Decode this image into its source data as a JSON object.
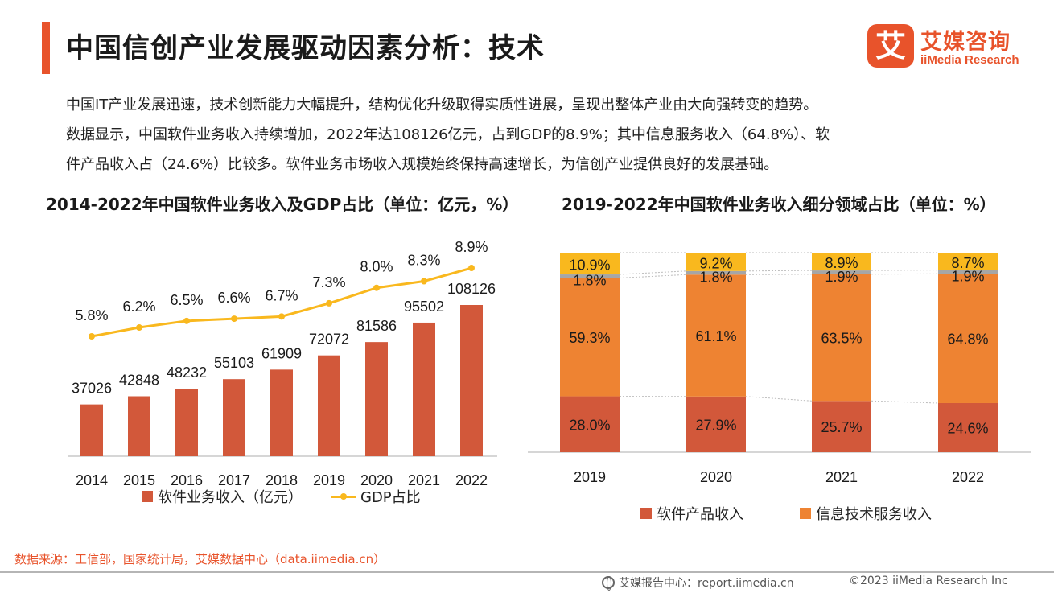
{
  "header": {
    "title": "中国信创产业发展驱动因素分析：技术",
    "logo_mark": "艾",
    "logo_cn": "艾媒咨询",
    "logo_en": "iiMedia Research"
  },
  "summary": [
    "中国IT产业发展迅速，技术创新能力大幅提升，结构优化升级取得实质性进展，呈现出整体产业由大向强转变的趋势。",
    "数据显示，中国软件业务收入持续增加，2022年达108126亿元，占到GDP的8.9%；其中信息服务收入（64.8%）、软",
    "件产品收入占（24.6%）比较多。软件业务市场收入规模始终保持高速增长，为信创产业提供良好的发展基础。"
  ],
  "colors": {
    "accent": "#e8532b",
    "bar_dark": "#d2583a",
    "bar_orange": "#ee8332",
    "bar_gray": "#a6a6a6",
    "bar_yellow": "#f9b81e",
    "line": "#f9b81e"
  },
  "chart_data": [
    {
      "type": "bar",
      "title": "2014-2022年中国软件业务收入及GDP占比（单位：亿元，%）",
      "categories": [
        "2014",
        "2015",
        "2016",
        "2017",
        "2018",
        "2019",
        "2020",
        "2021",
        "2022"
      ],
      "series": [
        {
          "name": "软件业务收入（亿元）",
          "type": "bar",
          "values": [
            37026,
            42848,
            48232,
            55103,
            61909,
            72072,
            81586,
            95502,
            108126
          ]
        },
        {
          "name": "GDP占比",
          "type": "line",
          "values": [
            5.8,
            6.2,
            6.5,
            6.6,
            6.7,
            7.3,
            8.0,
            8.3,
            8.9
          ],
          "labels": [
            "5.8%",
            "6.2%",
            "6.5%",
            "6.6%",
            "6.7%",
            "7.3%",
            "8.0%",
            "8.3%",
            "8.9%"
          ]
        }
      ],
      "legend_position": "bottom",
      "grid": false
    },
    {
      "type": "bar",
      "stacked": true,
      "title": "2019-2022年中国软件业务收入细分领域占比（单位：%）",
      "categories": [
        "2019",
        "2020",
        "2021",
        "2022"
      ],
      "series": [
        {
          "name": "软件产品收入",
          "values": [
            28.0,
            27.9,
            25.7,
            24.6
          ],
          "labels": [
            "28.0%",
            "27.9%",
            "25.7%",
            "24.6%"
          ],
          "color": "#d2583a"
        },
        {
          "name": "信息技术服务收入",
          "values": [
            59.3,
            61.1,
            63.5,
            64.8
          ],
          "labels": [
            "59.3%",
            "61.1%",
            "63.5%",
            "64.8%"
          ],
          "color": "#ee8332"
        },
        {
          "values": [
            1.8,
            1.8,
            1.9,
            1.9
          ],
          "labels": [
            "1.8%",
            "1.8%",
            "1.9%",
            "1.9%"
          ],
          "color": "#a6a6a6"
        },
        {
          "values": [
            10.9,
            9.2,
            8.9,
            8.7
          ],
          "labels": [
            "10.9%",
            "9.2%",
            "8.9%",
            "8.7%"
          ],
          "color": "#f9b81e"
        }
      ],
      "ylim": [
        0,
        100
      ],
      "legend_position": "bottom",
      "grid": false
    }
  ],
  "source": "数据来源：工信部，国家统计局，艾媒数据中心（data.iimedia.cn）",
  "footer": {
    "left": "艾媒报告中心：report.iimedia.cn",
    "right": "©2023  iiMedia Research  Inc"
  }
}
